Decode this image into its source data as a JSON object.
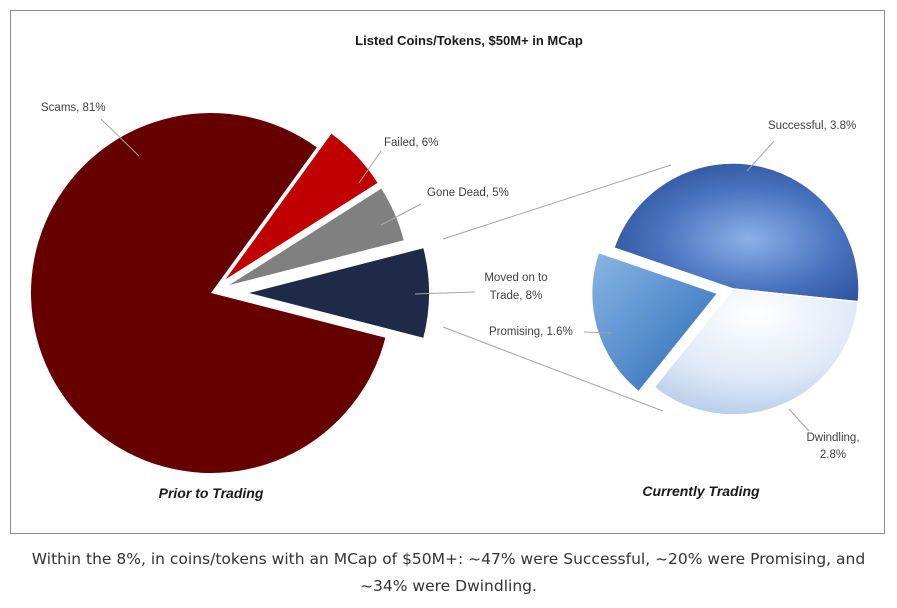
{
  "chart_data": [
    {
      "type": "pie",
      "title": "Listed Coins/Tokens, $50M+  in MCap",
      "name_label": "Prior to Trading",
      "slices": [
        {
          "label": "Scams, 81%",
          "category": "Scams",
          "value": 81,
          "color": "#660000"
        },
        {
          "label": "Failed, 6%",
          "category": "Failed",
          "value": 6,
          "color": "#c00000"
        },
        {
          "label": "Gone Dead, 5%",
          "category": "Gone Dead",
          "value": 5,
          "color": "#808080"
        },
        {
          "label_lines": [
            "Moved on to",
            "Trade, 8%"
          ],
          "category": "Moved on to Trade",
          "value": 8,
          "color": "#1f2a48"
        }
      ]
    },
    {
      "type": "pie",
      "name_label": "Currently Trading",
      "slices": [
        {
          "label": "Successful, 3.8%",
          "category": "Successful",
          "value": 3.8,
          "color": "#3a62ad"
        },
        {
          "label_lines": [
            "Dwindling,",
            "2.8%"
          ],
          "category": "Dwindling",
          "value": 2.8,
          "color": "#d4e4f5"
        },
        {
          "label": "Promising, 1.6%",
          "category": "Promising",
          "value": 1.6,
          "color": "#5b93cf"
        }
      ]
    }
  ],
  "caption": "Within the 8%, in coins/tokens with an MCap of $50M+: ~47% were Successful, ~20% were Promising, and ~34% were Dwindling."
}
